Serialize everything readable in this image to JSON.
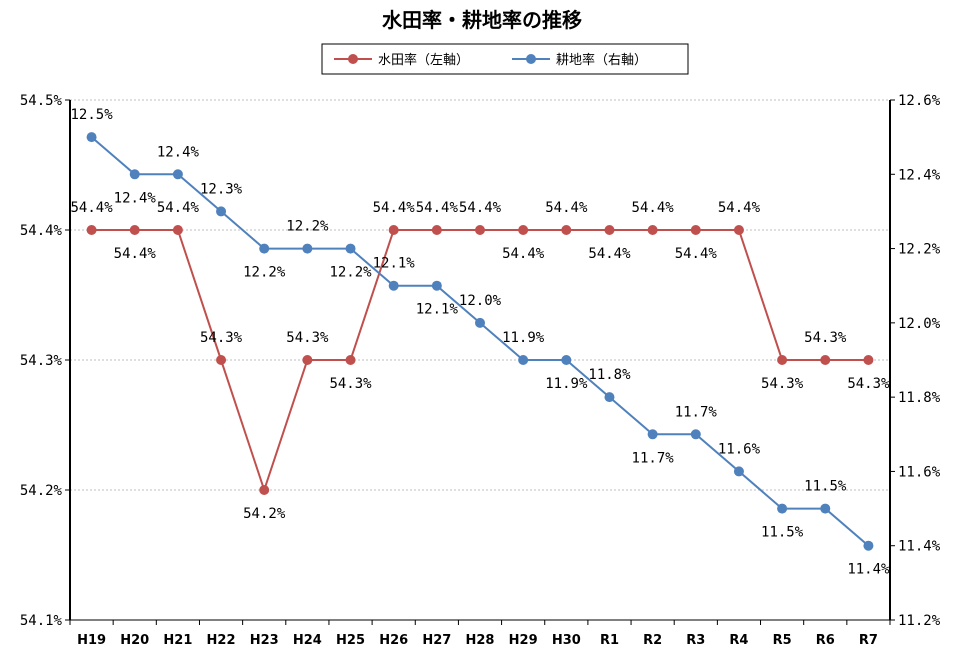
{
  "chart_data": {
    "type": "line",
    "title": "水田率・耕地率の推移",
    "categories": [
      "H19",
      "H20",
      "H21",
      "H22",
      "H23",
      "H24",
      "H25",
      "H26",
      "H27",
      "H28",
      "H29",
      "H30",
      "R1",
      "R2",
      "R3",
      "R4",
      "R5",
      "R6",
      "R7"
    ],
    "series": [
      {
        "name": "水田率（左軸）",
        "axis": "left",
        "color": "#C0504D",
        "values": [
          54.4,
          54.4,
          54.4,
          54.3,
          54.2,
          54.3,
          54.3,
          54.4,
          54.4,
          54.4,
          54.4,
          54.4,
          54.4,
          54.4,
          54.4,
          54.4,
          54.3,
          54.3,
          54.3
        ],
        "labels": [
          "54.4%",
          "54.4%",
          "54.4%",
          "54.3%",
          "54.2%",
          "54.3%",
          "54.3%",
          "54.4%",
          "54.4%",
          "54.4%",
          "54.4%",
          "54.4%",
          "54.4%",
          "54.4%",
          "54.4%",
          "54.4%",
          "54.3%",
          "54.3%",
          "54.3%"
        ],
        "label_pos": [
          "above",
          "below",
          "above",
          "above",
          "below",
          "above",
          "below",
          "above",
          "above",
          "above",
          "below",
          "above",
          "below",
          "above",
          "below",
          "above",
          "below",
          "above",
          "below"
        ]
      },
      {
        "name": "耕地率（右軸）",
        "axis": "right",
        "color": "#4F81BD",
        "values": [
          12.5,
          12.4,
          12.4,
          12.3,
          12.2,
          12.2,
          12.2,
          12.1,
          12.1,
          12.0,
          11.9,
          11.9,
          11.8,
          11.7,
          11.7,
          11.6,
          11.5,
          11.5,
          11.4
        ],
        "labels": [
          "12.5%",
          "12.4%",
          "12.4%",
          "12.3%",
          "12.2%",
          "12.2%",
          "12.2%",
          "12.1%",
          "12.1%",
          "12.0%",
          "11.9%",
          "11.9%",
          "11.8%",
          "11.7%",
          "11.7%",
          "11.6%",
          "11.5%",
          "11.5%",
          "11.4%"
        ],
        "label_pos": [
          "above",
          "below",
          "above",
          "above",
          "below",
          "above",
          "below",
          "above",
          "below",
          "above",
          "above",
          "below",
          "above",
          "below",
          "above",
          "above",
          "below",
          "above",
          "below"
        ]
      }
    ],
    "y_left": {
      "range": [
        54.1,
        54.5
      ],
      "ticks": [
        54.1,
        54.2,
        54.3,
        54.4,
        54.5
      ],
      "tick_labels": [
        "54.1%",
        "54.2%",
        "54.3%",
        "54.4%",
        "54.5%"
      ]
    },
    "y_right": {
      "range": [
        11.2,
        12.6
      ],
      "ticks": [
        11.2,
        11.4,
        11.6,
        11.8,
        12.0,
        12.2,
        12.4,
        12.6
      ],
      "tick_labels": [
        "11.2%",
        "11.4%",
        "11.6%",
        "11.8%",
        "12.0%",
        "12.2%",
        "12.4%",
        "12.6%"
      ]
    },
    "grid": true,
    "legend_position": "top-center"
  }
}
